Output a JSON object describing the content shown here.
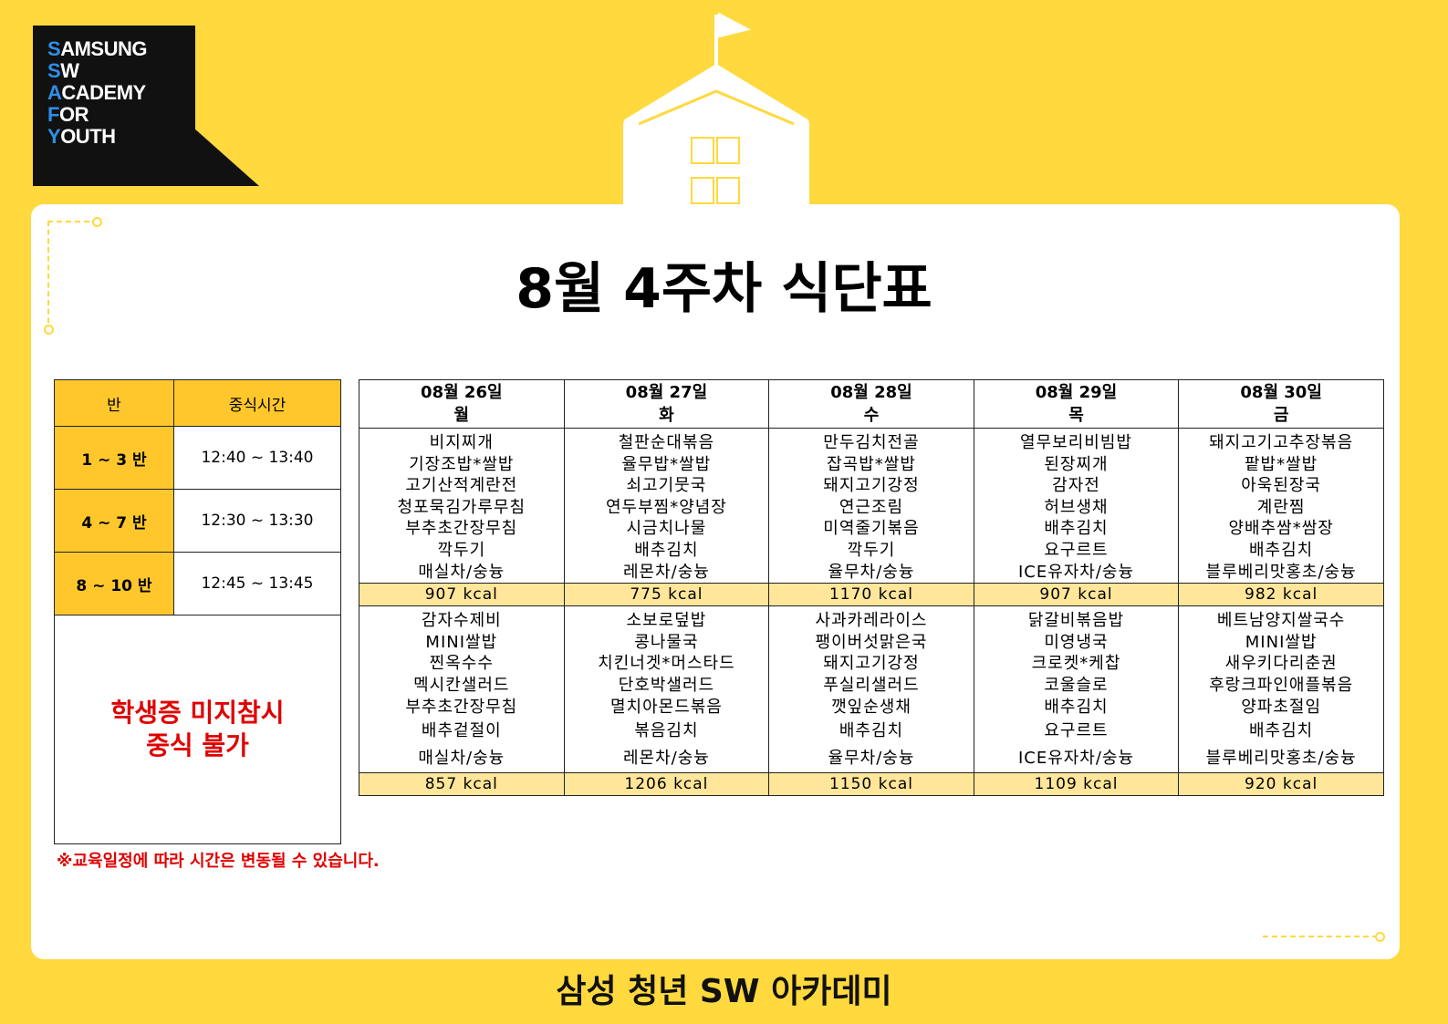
{
  "logo": {
    "lines": [
      {
        "first": "S",
        "rest": "AMSUNG"
      },
      {
        "first": "S",
        "rest": "W"
      },
      {
        "first": "A",
        "rest": "CADEMY"
      },
      {
        "first": "F",
        "rest": "OR"
      },
      {
        "first": "Y",
        "rest": "OUTH"
      }
    ]
  },
  "title": "8월 4주차 식단표",
  "schedule": {
    "headers": [
      "반",
      "중식시간"
    ],
    "rows": [
      {
        "class": "1 ~ 3 반",
        "time": "12:40 ~ 13:40"
      },
      {
        "class": "4 ~ 7 반",
        "time": "12:30 ~ 13:30"
      },
      {
        "class": "8 ~ 10 반",
        "time": "12:45 ~ 13:45"
      }
    ],
    "notice_line1": "학생증 미지참시",
    "notice_line2": "중식 불가"
  },
  "footnote": "※교육일정에 따라 시간은 변동될 수 있습니다.",
  "days": [
    {
      "date": "08월 26일",
      "weekday": "월",
      "menu1": [
        "비지찌개",
        "기장조밥*쌀밥",
        "고기산적계란전",
        "청포묵김가루무침",
        "부추초간장무침",
        "깍두기",
        "매실차/숭늉"
      ],
      "kcal1": "907 kcal",
      "menu2": [
        "감자수제비",
        "MINI쌀밥",
        "찐옥수수",
        "멕시칸샐러드",
        "부추초간장무침",
        "배추겉절이",
        "매실차/숭늉"
      ],
      "kcal2": "857 kcal"
    },
    {
      "date": "08월 27일",
      "weekday": "화",
      "menu1": [
        "철판순대볶음",
        "율무밥*쌀밥",
        "쇠고기뭇국",
        "연두부찜*양념장",
        "시금치나물",
        "배추김치",
        "레몬차/숭늉"
      ],
      "kcal1": "775 kcal",
      "menu2": [
        "소보로덮밥",
        "콩나물국",
        "치킨너겟*머스타드",
        "단호박샐러드",
        "멸치아몬드볶음",
        "볶음김치",
        "레몬차/숭늉"
      ],
      "kcal2": "1206 kcal"
    },
    {
      "date": "08월 28일",
      "weekday": "수",
      "menu1": [
        "만두김치전골",
        "잡곡밥*쌀밥",
        "돼지고기강정",
        "연근조림",
        "미역줄기볶음",
        "깍두기",
        "율무차/숭늉"
      ],
      "kcal1": "1170 kcal",
      "menu2": [
        "사과카레라이스",
        "팽이버섯맑은국",
        "돼지고기강정",
        "푸실리샐러드",
        "깻잎순생채",
        "배추김치",
        "율무차/숭늉"
      ],
      "kcal2": "1150 kcal"
    },
    {
      "date": "08월 29일",
      "weekday": "목",
      "menu1": [
        "열무보리비빔밥",
        "된장찌개",
        "감자전",
        "허브생채",
        "배추김치",
        "요구르트",
        "ICE유자차/숭늉"
      ],
      "kcal1": "907 kcal",
      "menu2": [
        "닭갈비볶음밥",
        "미영냉국",
        "크로켓*케찹",
        "코울슬로",
        "배추김치",
        "요구르트",
        "ICE유자차/숭늉"
      ],
      "kcal2": "1109 kcal"
    },
    {
      "date": "08월 30일",
      "weekday": "금",
      "menu1": [
        "돼지고기고추장볶음",
        "팥밥*쌀밥",
        "아욱된장국",
        "계란찜",
        "양배추쌈*쌈장",
        "배추김치",
        "블루베리맛홍초/숭늉"
      ],
      "kcal1": "982 kcal",
      "menu2": [
        "베트남양지쌀국수",
        "MINI쌀밥",
        "새우키다리춘권",
        "후랑크파인애플볶음",
        "양파초절임",
        "배추김치",
        "블루베리맛홍초/숭늉"
      ],
      "kcal2": "920 kcal"
    }
  ],
  "brand": "삼성 청년 SW 아카데미",
  "colors": {
    "background": "#ffd93d",
    "header_fill": "#ffc72c",
    "kcal_fill": "#ffe69a",
    "notice_red": "#e00000",
    "logo_blue": "#2f8fe8"
  }
}
